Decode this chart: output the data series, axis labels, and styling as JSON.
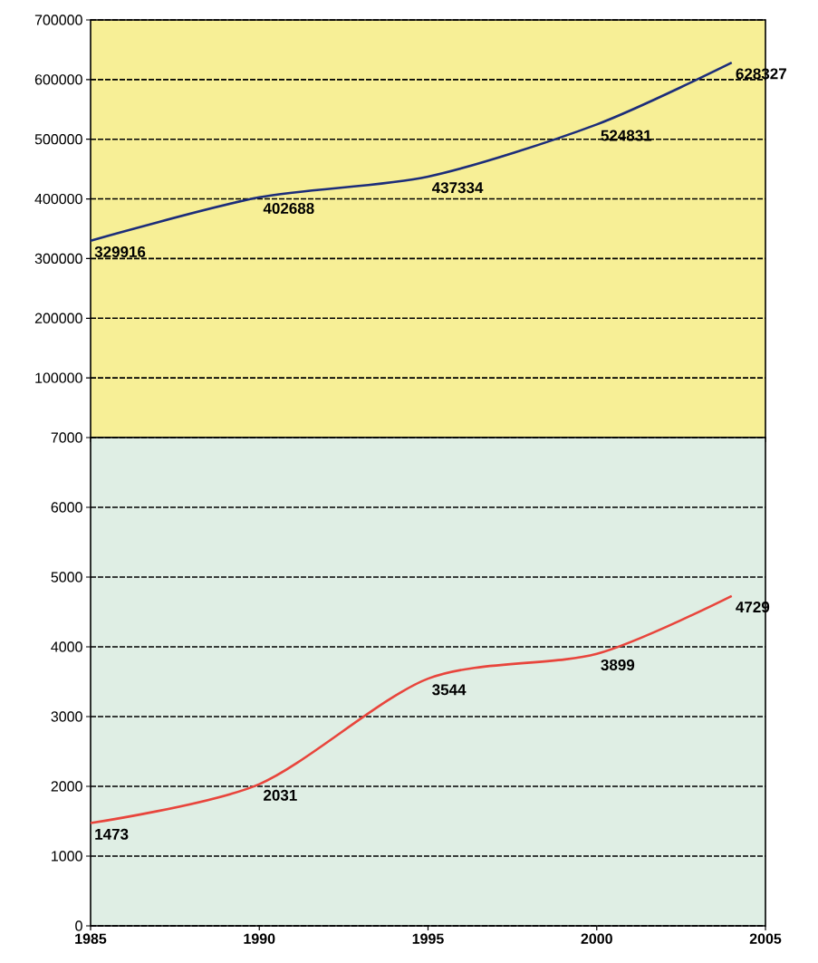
{
  "chart_data": [
    {
      "type": "line",
      "x": [
        1985,
        1990,
        1995,
        2000,
        2004
      ],
      "series": [
        {
          "color": "#1c2d7a",
          "values": [
            329916,
            402688,
            437334,
            524831,
            628327
          ]
        }
      ],
      "xlim": [
        1985,
        2005
      ],
      "ylim": [
        0,
        700000
      ],
      "xticks": [
        1985,
        1990,
        1995,
        2000,
        2005
      ],
      "yticks": [
        100000,
        200000,
        300000,
        400000,
        500000,
        600000,
        700000
      ],
      "grid": "y",
      "data_labels": true,
      "tick_labels": "y"
    },
    {
      "type": "line",
      "x": [
        1985,
        1990,
        1995,
        2000,
        2004
      ],
      "series": [
        {
          "color": "#e8453c",
          "values": [
            1473,
            2031,
            3544,
            3899,
            4729
          ]
        }
      ],
      "xlim": [
        1985,
        2005
      ],
      "ylim": [
        0,
        7000
      ],
      "xticks": [
        1985,
        1990,
        1995,
        2000,
        2005
      ],
      "yticks": [
        0,
        1000,
        2000,
        3000,
        4000,
        5000,
        6000,
        7000
      ],
      "grid": "y",
      "data_labels": true
    }
  ]
}
